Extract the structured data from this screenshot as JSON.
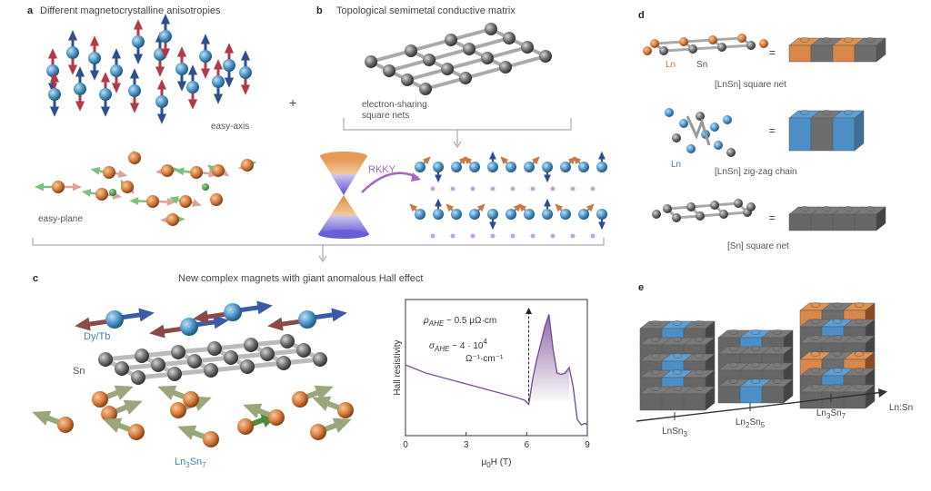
{
  "panels": {
    "a": {
      "label": "a",
      "title": "Different magnetocrystalline  anisotropies",
      "easy_axis": "easy-axis",
      "easy_plane": "easy-plane",
      "plus": "+"
    },
    "b": {
      "label": "b",
      "title": "Topological semimetal conductive matrix",
      "nets_line1": "electron-sharing",
      "nets_line2": "square nets",
      "rkky": "RKKY"
    },
    "c": {
      "label": "c",
      "title": "New complex magnets with giant anomalous Hall effect",
      "dy_tb": "Dy/Tb",
      "sn": "Sn",
      "ln3sn7_main": "Ln",
      "ln3sn7_sub1": "3",
      "ln3sn7_mid": "Sn",
      "ln3sn7_sub2": "7"
    },
    "d": {
      "label": "d",
      "ln": "Ln",
      "sn": "Sn",
      "eq": "=",
      "square_net": "[LnSn] square net",
      "ln2": "Ln",
      "zigzag": "[LnSn] zig-zag chain",
      "sn_net": "[Sn] square net"
    },
    "e": {
      "label": "e",
      "axis_label": "Ln:Sn",
      "tick1_a": "LnSn",
      "tick1_b": "3",
      "tick2_a": "Ln",
      "tick2_b": "2",
      "tick2_c": "Sn",
      "tick2_d": "5",
      "tick3_a": "Ln",
      "tick3_b": "3",
      "tick3_c": "Sn",
      "tick3_d": "7"
    }
  },
  "chart_data": {
    "type": "line",
    "ylabel": "Hall resistivity",
    "xlabel_mu": "μ",
    "xlabel_sub": "0",
    "xlabel_rest": "H (T)",
    "xlim": [
      0,
      9
    ],
    "xticks": [
      0,
      3,
      6,
      9
    ],
    "tick_labels": [
      "0",
      "3",
      "6",
      "9"
    ],
    "series": [
      {
        "x": [
          0,
          0.5,
          1,
          1.5,
          2,
          2.5,
          3,
          3.5,
          4,
          4.5,
          5,
          5.5,
          5.9,
          6.1,
          6.3,
          6.5,
          6.7,
          6.9,
          7.1,
          7.3,
          7.5,
          7.7,
          7.9,
          8.1,
          8.3,
          8.5,
          8.7,
          8.9,
          9
        ],
        "y": [
          5.2,
          4.9,
          4.6,
          4.4,
          4.2,
          4.0,
          3.8,
          3.6,
          3.4,
          3.2,
          3.0,
          2.8,
          2.6,
          2.3,
          4.2,
          5.6,
          6.8,
          8.0,
          8.9,
          6.4,
          4.6,
          4.5,
          4.6,
          5.0,
          3.6,
          1.2,
          0.8,
          0.9,
          0.8
        ]
      }
    ],
    "ylim": [
      0,
      10
    ],
    "ann_rho_sym": "ρ",
    "ann_rho_sub": "AHE",
    "ann_rho_val": " ~ 0.5 μΩ·cm",
    "ann_sig_sym": "σ",
    "ann_sig_sub": "AHE",
    "ann_sig_val": " ~ 4 · 10",
    "ann_sig_exp": "4",
    "ann_sig_unit": "Ω⁻¹·cm⁻¹",
    "line_color": "#7a4f96"
  }
}
